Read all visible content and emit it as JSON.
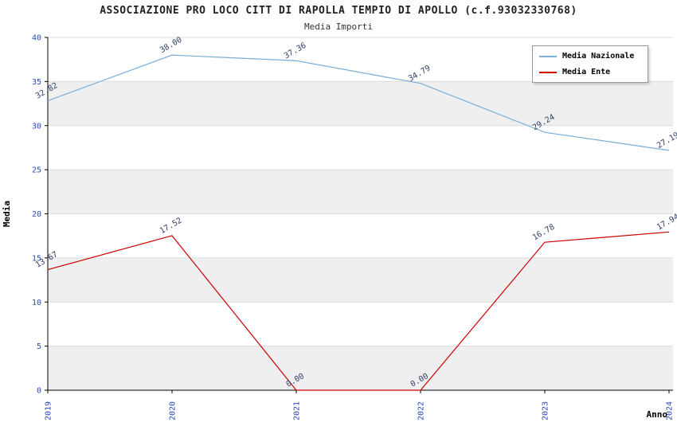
{
  "title": "ASSOCIAZIONE PRO LOCO CITT DI RAPOLLA TEMPIO DI APOLLO (c.f.93032330768)",
  "subtitle": "Media Importi",
  "colors": {
    "tick_label": "#2a4bbf",
    "value_label": "#33426b",
    "band": "#efefef",
    "grid": "#dcdcdc",
    "axis": "#000000",
    "nazionale": "#7aaed6",
    "ente": "#cc0000"
  },
  "chart_data": {
    "type": "line",
    "title": "ASSOCIAZIONE PRO LOCO CITT DI RAPOLLA TEMPIO DI APOLLO (c.f.93032330768)",
    "subtitle": "Media Importi",
    "x": [
      2019,
      2020,
      2021,
      2022,
      2023,
      2024
    ],
    "series": [
      {
        "name": "Media Nazionale",
        "color": "#7aaed6",
        "values": [
          32.82,
          38.0,
          37.36,
          34.79,
          29.24,
          27.19
        ]
      },
      {
        "name": "Media Ente",
        "color": "#cc0000",
        "values": [
          13.67,
          17.52,
          0.0,
          0.0,
          16.78,
          17.94
        ]
      }
    ],
    "xlabel": "Anno",
    "ylabel": "Media",
    "ylim": [
      0,
      40
    ],
    "yticks": [
      0,
      5,
      10,
      15,
      20,
      25,
      30,
      35,
      40
    ],
    "grid": "horizontal-bands",
    "legend_position": "top-right"
  }
}
